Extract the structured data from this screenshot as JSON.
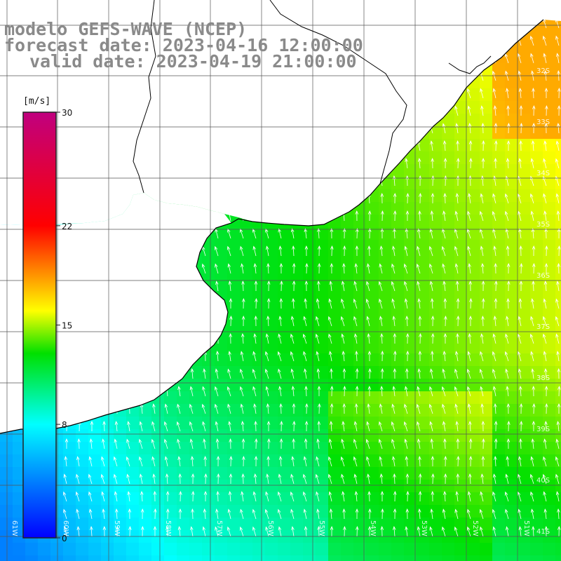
{
  "titles": {
    "model": "modelo GEFS-WAVE (NCEP)",
    "forecast": "forecast date: 2023-04-16 12:00:00",
    "valid": "valid date: 2023-04-19 21:00:00"
  },
  "colorbar": {
    "unit": "[m/s]",
    "ticks": [
      "30",
      "22",
      "15",
      "8",
      "0"
    ],
    "tick_values": [
      30,
      22,
      15,
      8,
      0
    ],
    "range": [
      0,
      30
    ],
    "colors": [
      "#0000ff",
      "#00ffff",
      "#00e000",
      "#ffff00",
      "#ff0000",
      "#c0007f"
    ]
  },
  "lat_labels": [
    "32S",
    "33S",
    "34S",
    "35S",
    "36S",
    "37S",
    "38S",
    "39S",
    "40S",
    "41S"
  ],
  "lon_labels": [
    "61W",
    "60W",
    "59W",
    "58W",
    "57W",
    "56W",
    "55W",
    "54W",
    "53W",
    "52W",
    "51W"
  ],
  "map": {
    "land_color": "#ffffff",
    "grid_color": "#555555",
    "coast_color": "#000000",
    "vector_color": "#ffffff"
  }
}
